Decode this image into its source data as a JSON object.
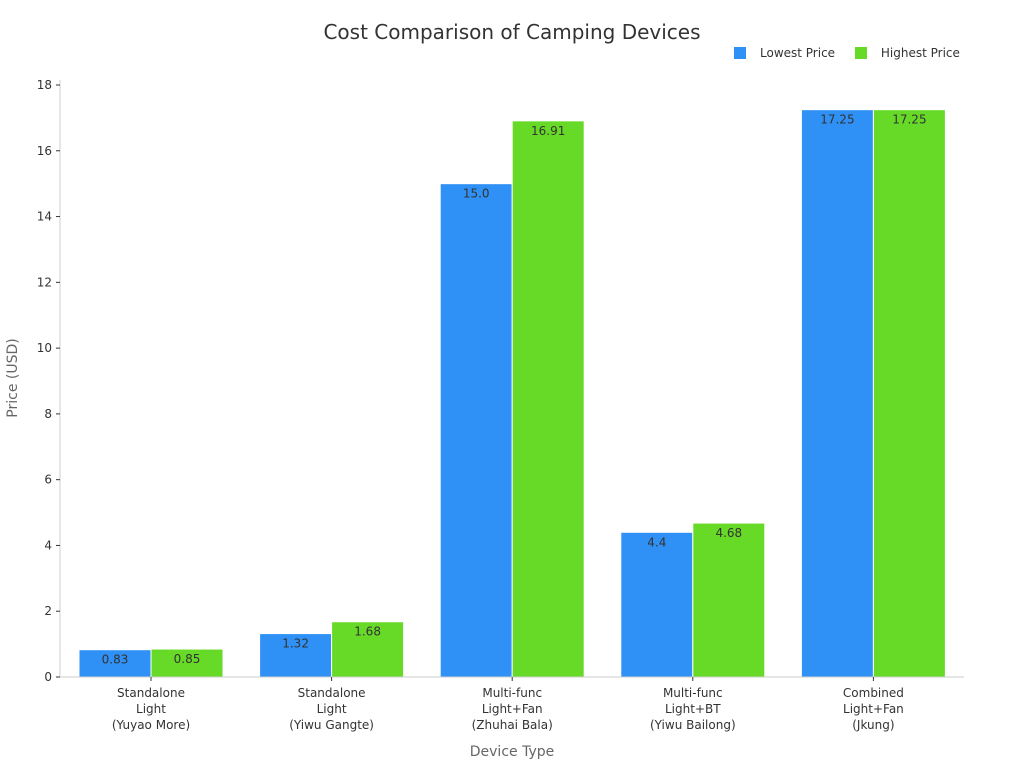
{
  "chart_data": {
    "type": "bar",
    "title": "Cost Comparison of Camping Devices",
    "xlabel": "Device Type",
    "ylabel": "Price (USD)",
    "ylim": [
      0,
      18
    ],
    "yticks": [
      0,
      2,
      4,
      6,
      8,
      10,
      12,
      14,
      16,
      18
    ],
    "grid": false,
    "legend_position": "top-right",
    "categories": [
      [
        "Standalone",
        "Light",
        "(Yuyao More)"
      ],
      [
        "Standalone",
        "Light",
        "(Yiwu Gangte)"
      ],
      [
        "Multi-func",
        "Light+Fan",
        "(Zhuhai Bala)"
      ],
      [
        "Multi-func",
        "Light+BT",
        "(Yiwu Bailong)"
      ],
      [
        "Combined",
        "Light+Fan",
        "(Jkung)"
      ]
    ],
    "series": [
      {
        "name": "Lowest Price",
        "color": "#2f90f5",
        "values": [
          0.83,
          1.32,
          15.0,
          4.4,
          17.25
        ],
        "labels": [
          "0.83",
          "1.32",
          "15.0",
          "4.4",
          "17.25"
        ]
      },
      {
        "name": "Highest Price",
        "color": "#66da27",
        "values": [
          0.85,
          1.68,
          16.91,
          4.68,
          17.25
        ],
        "labels": [
          "0.85",
          "1.68",
          "16.91",
          "4.68",
          "17.25"
        ]
      }
    ]
  }
}
